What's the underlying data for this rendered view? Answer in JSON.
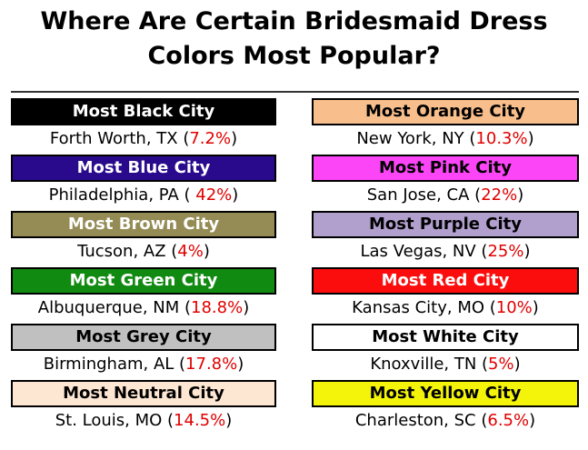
{
  "header": {
    "title_lines": [
      "Where Are Certain Bridesmaid Dress",
      "Colors Most Popular?"
    ]
  },
  "columns": [
    [
      {
        "label": "Most Black City",
        "color": "#000000",
        "text_color": "#ffffff",
        "city": "Forth Worth, TX (",
        "share": "7.2%",
        "close": ")"
      },
      {
        "label": "Most Blue City",
        "color": "#2a0a8c",
        "text_color": "#ffffff",
        "city": "Philadelphia, PA ( ",
        "share": "42%",
        "close": ")"
      },
      {
        "label": "Most Brown City",
        "color": "#958b55",
        "text_color": "#ffffff",
        "city": "Tucson, AZ (",
        "share": "4%",
        "close": ")"
      },
      {
        "label": "Most Green City",
        "color": "#118a12",
        "text_color": "#ffffff",
        "city": "Albuquerque, NM (",
        "share": "18.8%",
        "close": ")"
      },
      {
        "label": "Most Grey City",
        "color": "#c0c0c0",
        "text_color": "#000000",
        "city": "Birmingham, AL (",
        "share": "17.8%",
        "close": ")"
      },
      {
        "label": "Most Neutral City",
        "color": "#fde6d2",
        "text_color": "#000000",
        "city": "St. Louis, MO (",
        "share": "14.5%",
        "close": ")"
      }
    ],
    [
      {
        "label": "Most Orange City",
        "color": "#f8be8b",
        "text_color": "#000000",
        "city": "New York, NY (",
        "share": "10.3%",
        "close": ")"
      },
      {
        "label": "Most Pink City",
        "color": "#fb45f7",
        "text_color": "#000000",
        "city": "San Jose, CA (",
        "share": "22%",
        "close": ")"
      },
      {
        "label": "Most Purple City",
        "color": "#b19fcd",
        "text_color": "#000000",
        "city": "Las Vegas, NV (",
        "share": "25%",
        "close": ")"
      },
      {
        "label": "Most Red City",
        "color": "#fb0d0d",
        "text_color": "#ffffff",
        "city": "Kansas City, MO (",
        "share": "10%",
        "close": ")"
      },
      {
        "label": "Most White City",
        "color": "#ffffff",
        "text_color": "#000000",
        "city": "Knoxville, TN (",
        "share": "5%",
        "close": ")"
      },
      {
        "label": "Most Yellow City",
        "color": "#f4f40a",
        "text_color": "#000000",
        "city": "Charleston, SC (",
        "share": "6.5%",
        "close": ")"
      }
    ]
  ]
}
